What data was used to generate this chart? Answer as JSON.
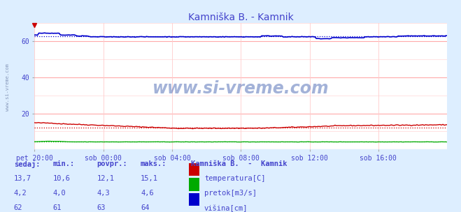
{
  "title": "Kamniška B. - Kamnik",
  "title_color": "#4444cc",
  "bg_color": "#ddeeff",
  "plot_bg_color": "#ffffff",
  "x_label_color": "#4444cc",
  "y_label_color": "#4444cc",
  "watermark": "www.si-vreme.com",
  "watermark_color": "#3355aa",
  "ylim": [
    0,
    70
  ],
  "yticks": [
    20,
    40,
    60
  ],
  "num_points": 288,
  "temp_avg": 12.1,
  "pretok_avg": 4.3,
  "visina_avg": 63,
  "temp_color": "#cc0000",
  "pretok_color": "#00aa00",
  "visina_color": "#0000cc",
  "x_tick_labels": [
    "pet 20:00",
    "sob 00:00",
    "sob 04:00",
    "sob 08:00",
    "sob 12:00",
    "sob 16:00"
  ],
  "legend_title": "Kamniška B.  -  Kamnik",
  "legend_items": [
    "temperatura[C]",
    "pretok[m3/s]",
    "višina[cm]"
  ],
  "legend_colors": [
    "#cc0000",
    "#00aa00",
    "#0000cc"
  ],
  "table_headers": [
    "sedaj:",
    "min.:",
    "povpr.:",
    "maks.:"
  ],
  "table_data": [
    [
      "13,7",
      "10,6",
      "12,1",
      "15,1"
    ],
    [
      "4,2",
      "4,0",
      "4,3",
      "4,6"
    ],
    [
      "62",
      "61",
      "63",
      "64"
    ]
  ],
  "table_color": "#4444cc",
  "left_label": "www.si-vreme.com",
  "left_label_color": "#8899bb"
}
